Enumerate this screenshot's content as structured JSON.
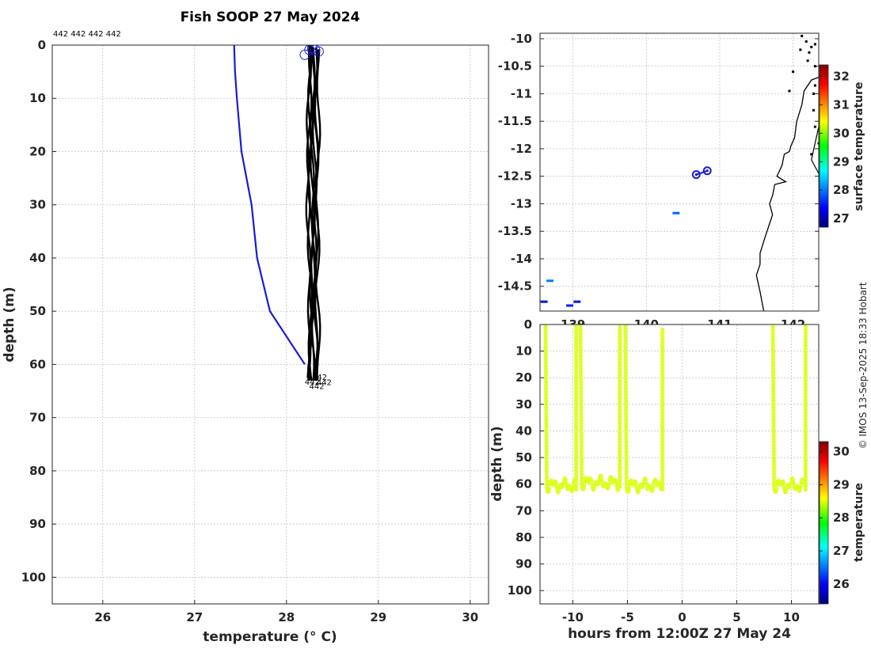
{
  "title": "Fish SOOP 27 May 2024",
  "profile_id_label": "442 442 442 442",
  "credit": "© IMOS 13-Sep-2025 18:33 Hobart",
  "colors": {
    "climatology": "#1a1ad6",
    "profiles": "#000000",
    "coast": "#000000"
  },
  "chart_data": [
    {
      "type": "line",
      "name": "profile",
      "xlabel": "temperature (° C)",
      "ylabel": "depth (m)",
      "xlim": [
        25.45,
        30.2
      ],
      "ylim": [
        0,
        105
      ],
      "y_reversed": true,
      "grid": true,
      "xticks": [
        26,
        27,
        28,
        29,
        30
      ],
      "yticks": [
        0,
        10,
        20,
        30,
        40,
        50,
        60,
        70,
        80,
        90,
        100
      ],
      "series": [
        {
          "role": "climatology",
          "color": "#1a1ad6",
          "points": [
            [
              27.43,
              0
            ],
            [
              27.44,
              5
            ],
            [
              27.46,
              10
            ],
            [
              27.51,
              20
            ],
            [
              27.62,
              30
            ],
            [
              27.68,
              40
            ],
            [
              27.82,
              50
            ],
            [
              28.2,
              60
            ]
          ]
        },
        {
          "role": "profiles",
          "color": "#000000",
          "x_range": [
            28.22,
            28.36
          ],
          "depth_range": [
            0,
            63
          ]
        }
      ],
      "annotations": [
        "442",
        "442",
        "442",
        "442"
      ]
    },
    {
      "type": "scatter",
      "name": "map",
      "xlim": [
        138.55,
        142.35
      ],
      "ylim": [
        -14.95,
        -9.9
      ],
      "xticks": [
        139,
        140,
        141,
        142
      ],
      "xtick_labels": [
        "139",
        "140",
        "141",
        "142"
      ],
      "yticks": [
        -10,
        -10.5,
        -11,
        -11.5,
        -12,
        -12.5,
        -13,
        -13.5,
        -14,
        -14.5
      ],
      "grid": true,
      "colorbar": {
        "label": "surface temperature",
        "ticks": [
          27,
          28,
          29,
          30,
          31,
          32
        ],
        "range": [
          26.7,
          32.4
        ]
      },
      "positions": [
        [
          140.68,
          -12.47
        ],
        [
          140.83,
          -12.4
        ]
      ],
      "sst_patches": [
        {
          "lon": 140.4,
          "lat": -13.17,
          "value": 28.0
        },
        {
          "lon": 138.68,
          "lat": -14.4,
          "value": 28.1
        },
        {
          "lon": 138.6,
          "lat": -14.78,
          "value": 27.5
        },
        {
          "lon": 138.95,
          "lat": -14.85,
          "value": 27.6
        },
        {
          "lon": 139.05,
          "lat": -14.78,
          "value": 27.5
        }
      ]
    },
    {
      "type": "scatter",
      "name": "time_depth",
      "xlabel": "hours from 12:00Z 27 May 24",
      "ylabel": "depth (m)",
      "xlim": [
        -13,
        12.5
      ],
      "ylim": [
        0,
        105
      ],
      "y_reversed": true,
      "grid": true,
      "xticks": [
        -10,
        -5,
        0,
        5,
        10
      ],
      "yticks": [
        0,
        10,
        20,
        30,
        40,
        50,
        60,
        70,
        80,
        90,
        100
      ],
      "colorbar": {
        "label": "temperature",
        "ticks": [
          26,
          27,
          28,
          29,
          30
        ],
        "range": [
          25.4,
          30.3
        ]
      },
      "point_temperature": 28.3,
      "casts": [
        {
          "t0": -12.5,
          "t1": -9.7,
          "bottom": 62,
          "top_start": 0,
          "top_end": 0
        },
        {
          "t0": -9.3,
          "t1": -5.7,
          "bottom": 61,
          "top_start": 0,
          "top_end": 0
        },
        {
          "t0": -5.2,
          "t1": -1.8,
          "bottom": 62,
          "top_start": 0,
          "top_end": 1
        },
        {
          "t0": 8.3,
          "t1": 11.3,
          "bottom": 62,
          "top_start": 1,
          "top_end": 0
        }
      ]
    }
  ]
}
